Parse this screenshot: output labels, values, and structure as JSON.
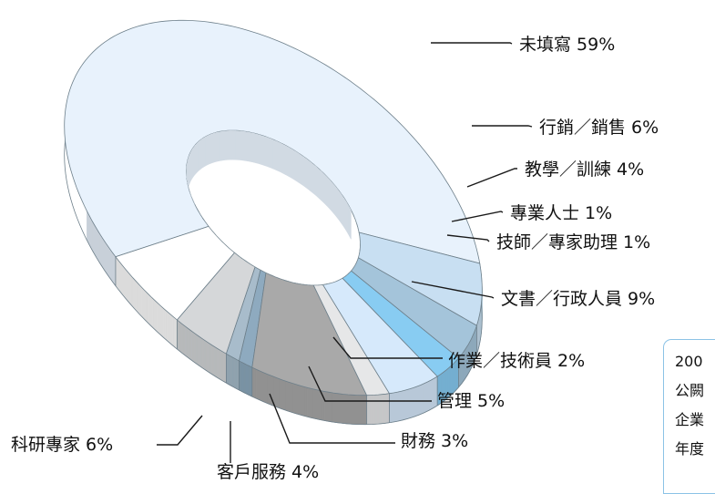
{
  "chart_data": {
    "type": "pie",
    "style": "3d-donut",
    "colors": [
      "#e8f2fc",
      "#ffffff",
      "#d5d7d9",
      "#a8bccb",
      "#8eaabf",
      "#a9a9a9",
      "#e6e7e8",
      "#d6e9fb",
      "#88ccf2",
      "#a4c4da",
      "#c8dff2"
    ],
    "slices": [
      {
        "label": "未填寫 59%",
        "value": 59
      },
      {
        "label": "行銷／銷售 6%",
        "value": 6
      },
      {
        "label": "教學／訓練 4%",
        "value": 4
      },
      {
        "label": "專業人士 1%",
        "value": 1
      },
      {
        "label": "技師／專家助理 1%",
        "value": 1
      },
      {
        "label": "文書／行政人員 9%",
        "value": 9
      },
      {
        "label": "作業／技術員 2%",
        "value": 2
      },
      {
        "label": "管理 5%",
        "value": 5
      },
      {
        "label": "財務 3%",
        "value": 3
      },
      {
        "label": "客戶服務 4%",
        "value": 4
      },
      {
        "label": "科研專家 6%",
        "value": 6
      }
    ]
  },
  "side_box": {
    "lines": [
      "200",
      "公闕",
      "企業",
      "年度"
    ]
  }
}
